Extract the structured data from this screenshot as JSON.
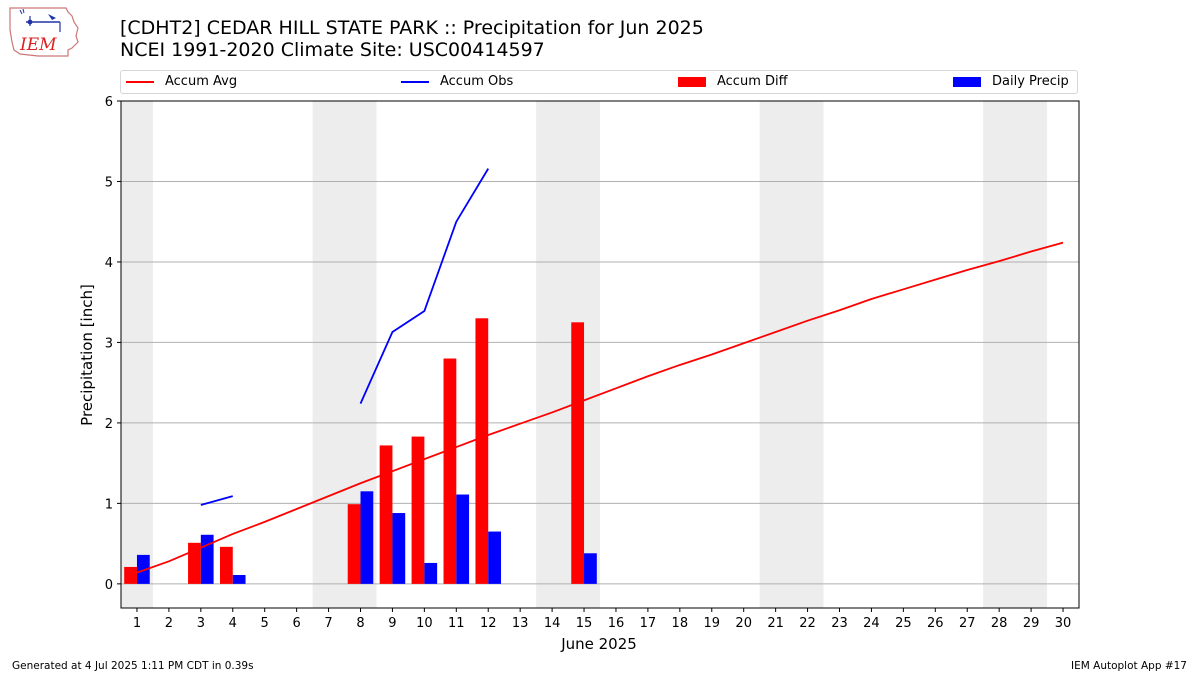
{
  "header": {
    "title_line1": "[CDHT2] CEDAR HILL STATE PARK :: Precipitation for Jun 2025",
    "title_line2": "NCEI 1991-2020 Climate Site: USC00414597",
    "logo_text": "IEM"
  },
  "legend": {
    "items": [
      {
        "label": "Accum Avg",
        "color": "#ff0000",
        "kind": "line"
      },
      {
        "label": "Accum Obs",
        "color": "#0000ff",
        "kind": "line"
      },
      {
        "label": "Accum Diff",
        "color": "#ff0000",
        "kind": "bar"
      },
      {
        "label": "Daily Precip",
        "color": "#0000ff",
        "kind": "bar"
      }
    ]
  },
  "footer": {
    "left": "Generated at 4 Jul 2025 1:11 PM CDT in 0.39s",
    "right": "IEM Autoplot App #17"
  },
  "chart_data": {
    "type": "bar",
    "xlabel": "June 2025",
    "ylabel": "Precipitation [inch]",
    "xlim": [
      0.5,
      30.5
    ],
    "ylim": [
      -0.3,
      6.0
    ],
    "yticks": [
      0,
      1,
      2,
      3,
      4,
      5,
      6
    ],
    "x": [
      1,
      2,
      3,
      4,
      5,
      6,
      7,
      8,
      9,
      10,
      11,
      12,
      13,
      14,
      15,
      16,
      17,
      18,
      19,
      20,
      21,
      22,
      23,
      24,
      25,
      26,
      27,
      28,
      29,
      30
    ],
    "weekend_shading": [
      [
        0.5,
        1.5
      ],
      [
        6.5,
        8.5
      ],
      [
        13.5,
        15.5
      ],
      [
        20.5,
        22.5
      ],
      [
        27.5,
        29.5
      ]
    ],
    "grid": "horizontal",
    "series": [
      {
        "name": "Accum Avg",
        "type": "line",
        "color": "#ff0000",
        "x": [
          1,
          2,
          3,
          4,
          5,
          6,
          7,
          8,
          9,
          10,
          11,
          12,
          13,
          14,
          15,
          16,
          17,
          18,
          19,
          20,
          21,
          22,
          23,
          24,
          25,
          26,
          27,
          28,
          29,
          30
        ],
        "values": [
          0.14,
          0.28,
          0.45,
          0.62,
          0.77,
          0.93,
          1.09,
          1.25,
          1.4,
          1.55,
          1.7,
          1.85,
          1.99,
          2.13,
          2.28,
          2.43,
          2.58,
          2.72,
          2.85,
          2.99,
          3.13,
          3.27,
          3.4,
          3.54,
          3.66,
          3.78,
          3.9,
          4.01,
          4.13,
          4.24
        ]
      },
      {
        "name": "Accum Obs",
        "type": "line",
        "color": "#0000ff",
        "segments": [
          {
            "x": [
              3,
              4
            ],
            "values": [
              0.98,
              1.09
            ]
          },
          {
            "x": [
              8,
              9,
              10,
              11,
              12
            ],
            "values": [
              2.24,
              3.13,
              3.39,
              4.5,
              5.16
            ]
          }
        ]
      },
      {
        "name": "Accum Diff",
        "type": "bar",
        "color": "#ff0000",
        "offset": "left",
        "x": [
          1,
          3,
          4,
          8,
          9,
          10,
          11,
          12,
          15
        ],
        "values": [
          0.21,
          0.51,
          0.46,
          0.99,
          1.72,
          1.83,
          2.8,
          3.3,
          3.25
        ]
      },
      {
        "name": "Daily Precip",
        "type": "bar",
        "color": "#0000ff",
        "offset": "right",
        "x": [
          1,
          3,
          4,
          8,
          9,
          10,
          11,
          12,
          15
        ],
        "values": [
          0.36,
          0.61,
          0.11,
          1.15,
          0.88,
          0.26,
          1.11,
          0.65,
          0.38
        ]
      }
    ]
  }
}
